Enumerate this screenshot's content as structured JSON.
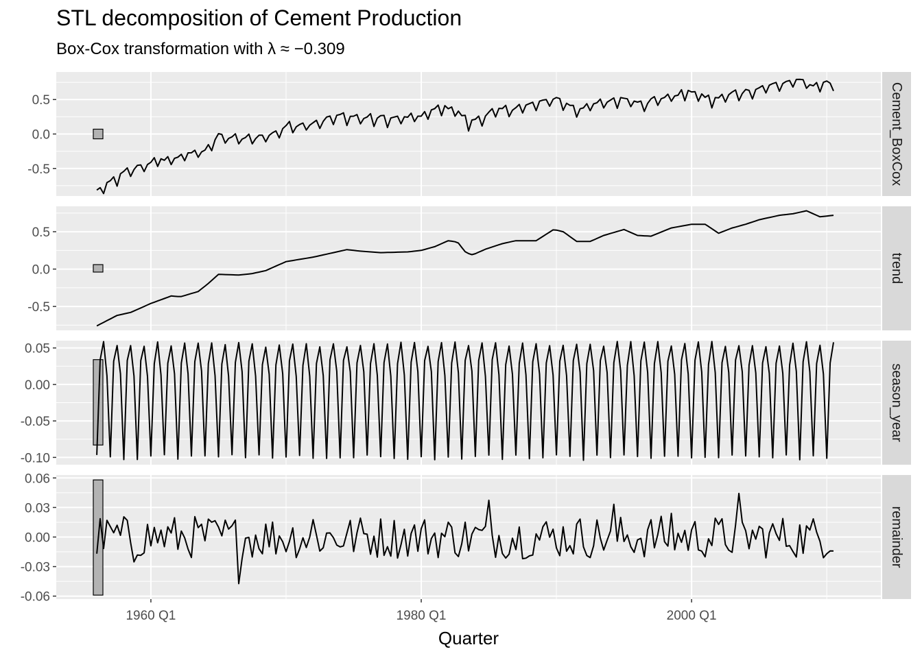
{
  "title": "STL decomposition of Cement Production",
  "subtitle": "Box-Cox transformation with λ ≈ −0.309",
  "chart_data": {
    "type": "line",
    "x_axis": {
      "label": "Quarter",
      "range": [
        1953.0,
        2014.0
      ],
      "ticks": [
        1960,
        1980,
        2000
      ],
      "tick_labels": [
        "1960 Q1",
        "1980 Q1",
        "2000 Q1"
      ]
    },
    "x_start": 1956.0,
    "x_step": 0.25,
    "colors": {
      "panel_bg": "#ebebeb",
      "grid": "#ffffff",
      "strip_bg": "#d9d9d9",
      "line": "#000000",
      "range_bar": "#b3b3b3"
    },
    "panels": [
      {
        "name": "Cement_BoxCox",
        "ylim": [
          -0.9,
          0.9
        ],
        "y_ticks": [
          -0.5,
          0.0,
          0.5
        ],
        "y_tick_labels": [
          "-0.5",
          "0.0",
          "0.5"
        ],
        "range_bar": [
          -0.07,
          0.07
        ],
        "anchors": [
          [
            1956.0,
            -0.85
          ],
          [
            1958.0,
            -0.58
          ],
          [
            1960.0,
            -0.42
          ],
          [
            1962.0,
            -0.35
          ],
          [
            1964.0,
            -0.24
          ],
          [
            1965.0,
            -0.05
          ],
          [
            1967.0,
            -0.08
          ],
          [
            1969.0,
            -0.02
          ],
          [
            1970.0,
            0.1
          ],
          [
            1972.0,
            0.15
          ],
          [
            1974.0,
            0.25
          ],
          [
            1976.0,
            0.22
          ],
          [
            1978.0,
            0.21
          ],
          [
            1980.0,
            0.25
          ],
          [
            1981.5,
            0.38
          ],
          [
            1982.5,
            0.35
          ],
          [
            1983.5,
            0.15
          ],
          [
            1985.5,
            0.32
          ],
          [
            1987.0,
            0.37
          ],
          [
            1988.5,
            0.42
          ],
          [
            1989.8,
            0.51
          ],
          [
            1991.5,
            0.35
          ],
          [
            1993.5,
            0.45
          ],
          [
            1995.0,
            0.5
          ],
          [
            1996.5,
            0.44
          ],
          [
            1998.0,
            0.52
          ],
          [
            2000.0,
            0.6
          ],
          [
            2001.5,
            0.48
          ],
          [
            2003.0,
            0.57
          ],
          [
            2004.5,
            0.62
          ],
          [
            2006.0,
            0.7
          ],
          [
            2008.0,
            0.76
          ],
          [
            2009.0,
            0.7
          ],
          [
            2010.5,
            0.72
          ]
        ],
        "seasonal_ripple": [
          0.03,
          0.055,
          -0.1,
          0.015
        ],
        "ripple_scale": 0.9,
        "noise": 0.03
      },
      {
        "name": "trend",
        "ylim": [
          -0.82,
          0.84
        ],
        "y_ticks": [
          -0.5,
          0.0,
          0.5
        ],
        "y_tick_labels": [
          "-0.5",
          "0.0",
          "0.5"
        ],
        "range_bar": [
          -0.04,
          0.06
        ],
        "anchors": [
          [
            1956.0,
            -0.76
          ],
          [
            1957.5,
            -0.62
          ],
          [
            1958.5,
            -0.58
          ],
          [
            1960.0,
            -0.46
          ],
          [
            1961.5,
            -0.36
          ],
          [
            1962.2,
            -0.37
          ],
          [
            1963.5,
            -0.3
          ],
          [
            1964.2,
            -0.2
          ],
          [
            1965.0,
            -0.07
          ],
          [
            1966.5,
            -0.08
          ],
          [
            1967.5,
            -0.06
          ],
          [
            1968.5,
            -0.02
          ],
          [
            1970.0,
            0.1
          ],
          [
            1972.0,
            0.16
          ],
          [
            1973.5,
            0.22
          ],
          [
            1974.5,
            0.26
          ],
          [
            1975.5,
            0.24
          ],
          [
            1977.0,
            0.22
          ],
          [
            1979.0,
            0.23
          ],
          [
            1980.0,
            0.25
          ],
          [
            1981.0,
            0.3
          ],
          [
            1982.0,
            0.38
          ],
          [
            1982.7,
            0.36
          ],
          [
            1983.3,
            0.22
          ],
          [
            1983.8,
            0.19
          ],
          [
            1984.8,
            0.27
          ],
          [
            1986.0,
            0.34
          ],
          [
            1987.0,
            0.38
          ],
          [
            1988.5,
            0.38
          ],
          [
            1989.8,
            0.53
          ],
          [
            1990.5,
            0.5
          ],
          [
            1991.5,
            0.37
          ],
          [
            1992.5,
            0.37
          ],
          [
            1993.5,
            0.45
          ],
          [
            1995.0,
            0.53
          ],
          [
            1996.0,
            0.45
          ],
          [
            1997.0,
            0.44
          ],
          [
            1998.5,
            0.55
          ],
          [
            2000.0,
            0.6
          ],
          [
            2001.0,
            0.6
          ],
          [
            2002.0,
            0.48
          ],
          [
            2003.0,
            0.55
          ],
          [
            2004.0,
            0.6
          ],
          [
            2005.0,
            0.66
          ],
          [
            2006.5,
            0.72
          ],
          [
            2007.5,
            0.74
          ],
          [
            2008.5,
            0.78
          ],
          [
            2009.5,
            0.7
          ],
          [
            2010.5,
            0.72
          ]
        ],
        "seasonal_ripple": [
          0,
          0,
          0,
          0
        ],
        "ripple_scale": 0,
        "noise": 0
      },
      {
        "name": "season_year",
        "ylim": [
          -0.11,
          0.06
        ],
        "y_ticks": [
          -0.1,
          -0.05,
          0.0,
          0.05
        ],
        "y_tick_labels": [
          "-0.10",
          "-0.05",
          "0.00",
          "0.05"
        ],
        "range_bar": [
          -0.083,
          0.034
        ],
        "anchors": [
          [
            1956.0,
            0.0
          ],
          [
            2010.5,
            0.0
          ]
        ],
        "seasonal_ripple": [
          -0.1,
          0.03,
          0.055,
          0.015
        ],
        "ripple_scale": 1.0,
        "noise": 0.004
      },
      {
        "name": "remainder",
        "ylim": [
          -0.063,
          0.063
        ],
        "y_ticks": [
          -0.06,
          -0.03,
          0.0,
          0.03,
          0.06
        ],
        "y_tick_labels": [
          "-0.06",
          "-0.03",
          "0.00",
          "0.03",
          "0.06"
        ],
        "range_bar": [
          -0.059,
          0.058
        ],
        "anchors": [
          [
            1956.0,
            0.0
          ],
          [
            2010.5,
            0.0
          ]
        ],
        "seasonal_ripple": [
          0,
          0,
          0,
          0
        ],
        "ripple_scale": 0,
        "noise": 0.022
      }
    ]
  }
}
